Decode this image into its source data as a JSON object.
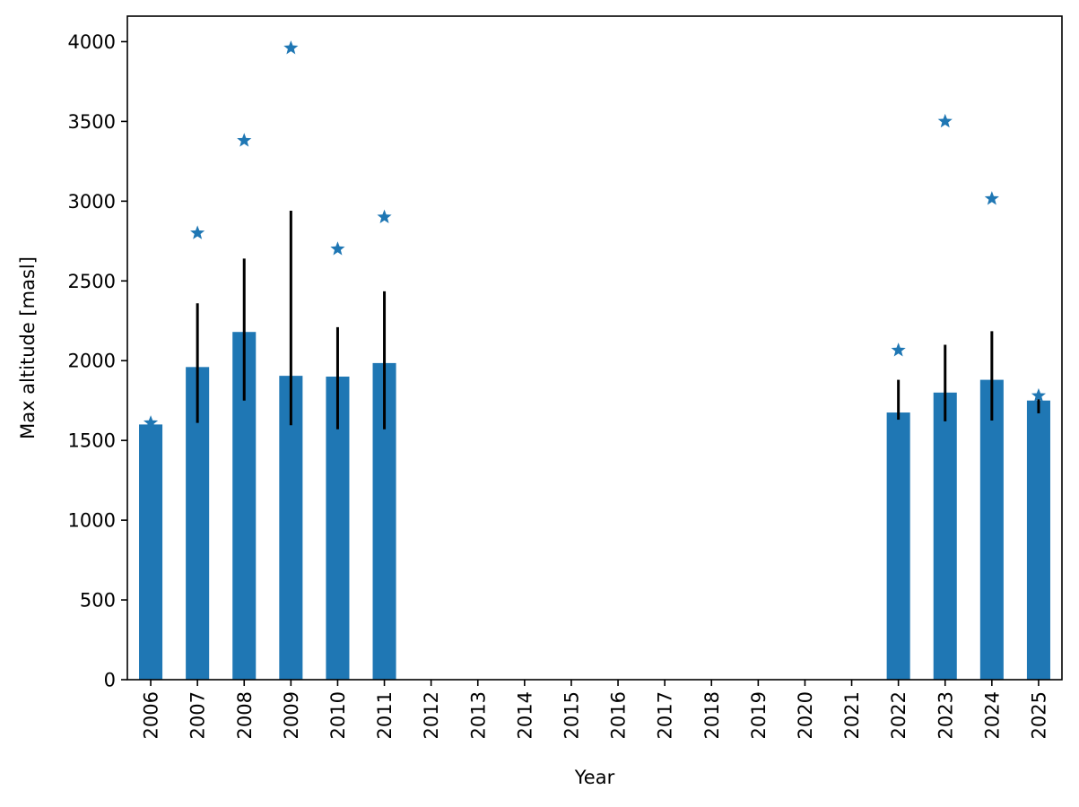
{
  "chart_data": {
    "type": "bar",
    "title": "",
    "xlabel": "Year",
    "ylabel": "Max altitude [masl]",
    "categories": [
      "2006",
      "2007",
      "2008",
      "2009",
      "2010",
      "2011",
      "2012",
      "2013",
      "2014",
      "2015",
      "2016",
      "2017",
      "2018",
      "2019",
      "2020",
      "2021",
      "2022",
      "2023",
      "2024",
      "2025"
    ],
    "series": [
      {
        "type": "bar",
        "values": [
          1600,
          1960,
          2180,
          1905,
          1900,
          1985,
          null,
          null,
          null,
          null,
          null,
          null,
          null,
          null,
          null,
          null,
          1675,
          1800,
          1880,
          1750
        ],
        "error_low": [
          null,
          1610,
          1750,
          1595,
          1570,
          1570,
          null,
          null,
          null,
          null,
          null,
          null,
          null,
          null,
          null,
          null,
          1630,
          1620,
          1625,
          1670
        ],
        "error_high": [
          null,
          2360,
          2640,
          2940,
          2210,
          2435,
          null,
          null,
          null,
          null,
          null,
          null,
          null,
          null,
          null,
          null,
          1880,
          2100,
          2185,
          1790
        ]
      },
      {
        "type": "scatter",
        "marker": "star",
        "values": [
          1610,
          2800,
          3380,
          3960,
          2700,
          2900,
          null,
          null,
          null,
          null,
          null,
          null,
          null,
          null,
          null,
          null,
          2065,
          3500,
          3015,
          1780
        ]
      }
    ],
    "ylim": [
      0,
      4160
    ],
    "yticks": [
      0,
      500,
      1000,
      1500,
      2000,
      2500,
      3000,
      3500,
      4000
    ],
    "grid": false,
    "colors": {
      "bar": "#1f77b4",
      "marker": "#1f77b4",
      "errorbar": "#000000",
      "axes": "#000000"
    }
  }
}
